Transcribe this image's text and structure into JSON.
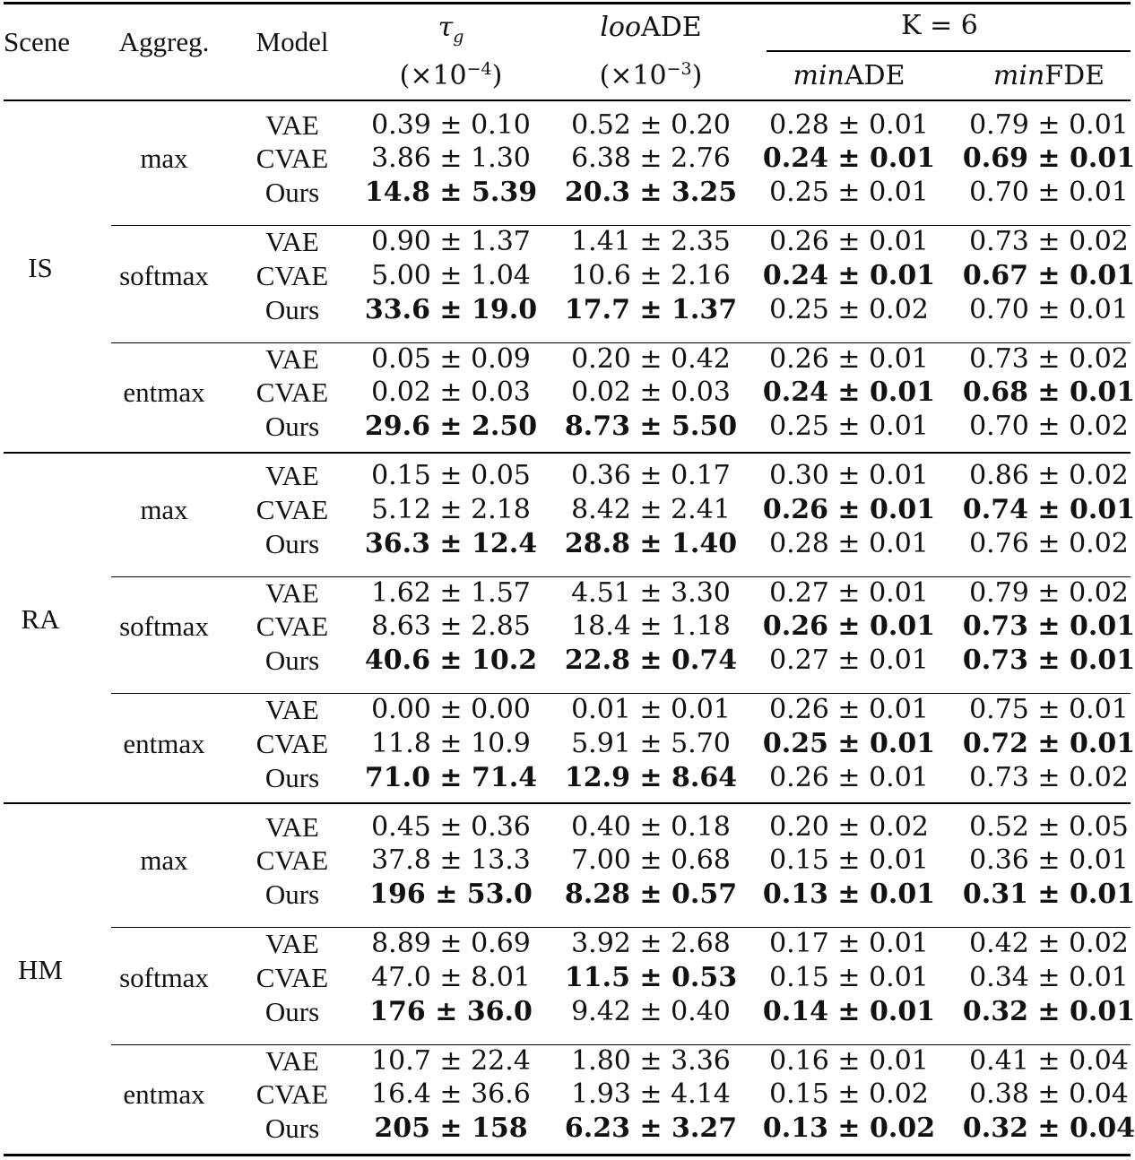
{
  "header": {
    "scene": "Scene",
    "aggreg": "Aggreg.",
    "model": "Model",
    "tau_symbol": "τ",
    "tau_sub": "g",
    "tau_unit_pre": "(×10",
    "tau_unit_exp": "−4",
    "tau_unit_post": ")",
    "loo_italic": "loo",
    "loo_rest": "ADE",
    "loo_unit_pre": "(×10",
    "loo_unit_exp": "−3",
    "loo_unit_post": ")",
    "k_group": "K = 6",
    "minade_italic": "min",
    "minade_rest": "ADE",
    "minfde_italic": "min",
    "minfde_rest": "FDE"
  },
  "scenes": [
    {
      "name": "IS",
      "groups": [
        {
          "aggreg": "max",
          "rows": [
            {
              "model": "VAE",
              "tau": "0.39 ± 0.10",
              "tau_bold": false,
              "loo": "0.52 ± 0.20",
              "loo_bold": false,
              "minade": "0.28 ± 0.01",
              "minade_bold": false,
              "minfde": "0.79 ± 0.01",
              "minfde_bold": false
            },
            {
              "model": "CVAE",
              "tau": "3.86 ± 1.30",
              "tau_bold": false,
              "loo": "6.38 ± 2.76",
              "loo_bold": false,
              "minade": "0.24 ± 0.01",
              "minade_bold": true,
              "minfde": "0.69 ± 0.01",
              "minfde_bold": true
            },
            {
              "model": "Ours",
              "tau": "14.8 ± 5.39",
              "tau_bold": true,
              "loo": "20.3 ± 3.25",
              "loo_bold": true,
              "minade": "0.25 ± 0.01",
              "minade_bold": false,
              "minfde": "0.70 ± 0.01",
              "minfde_bold": false
            }
          ]
        },
        {
          "aggreg": "softmax",
          "rows": [
            {
              "model": "VAE",
              "tau": "0.90 ± 1.37",
              "tau_bold": false,
              "loo": "1.41 ± 2.35",
              "loo_bold": false,
              "minade": "0.26 ± 0.01",
              "minade_bold": false,
              "minfde": "0.73 ± 0.02",
              "minfde_bold": false
            },
            {
              "model": "CVAE",
              "tau": "5.00 ± 1.04",
              "tau_bold": false,
              "loo": "10.6 ± 2.16",
              "loo_bold": false,
              "minade": "0.24 ± 0.01",
              "minade_bold": true,
              "minfde": "0.67 ± 0.01",
              "minfde_bold": true
            },
            {
              "model": "Ours",
              "tau": "33.6 ± 19.0",
              "tau_bold": true,
              "loo": "17.7 ± 1.37",
              "loo_bold": true,
              "minade": "0.25 ± 0.02",
              "minade_bold": false,
              "minfde": "0.70 ± 0.01",
              "minfde_bold": false
            }
          ]
        },
        {
          "aggreg": "entmax",
          "rows": [
            {
              "model": "VAE",
              "tau": "0.05 ± 0.09",
              "tau_bold": false,
              "loo": "0.20 ± 0.42",
              "loo_bold": false,
              "minade": "0.26 ± 0.01",
              "minade_bold": false,
              "minfde": "0.73 ± 0.02",
              "minfde_bold": false
            },
            {
              "model": "CVAE",
              "tau": "0.02 ± 0.03",
              "tau_bold": false,
              "loo": "0.02 ± 0.03",
              "loo_bold": false,
              "minade": "0.24 ± 0.01",
              "minade_bold": true,
              "minfde": "0.68 ± 0.01",
              "minfde_bold": true
            },
            {
              "model": "Ours",
              "tau": "29.6 ± 2.50",
              "tau_bold": true,
              "loo": "8.73 ± 5.50",
              "loo_bold": true,
              "minade": "0.25 ± 0.01",
              "minade_bold": false,
              "minfde": "0.70 ± 0.02",
              "minfde_bold": false
            }
          ]
        }
      ]
    },
    {
      "name": "RA",
      "groups": [
        {
          "aggreg": "max",
          "rows": [
            {
              "model": "VAE",
              "tau": "0.15 ± 0.05",
              "tau_bold": false,
              "loo": "0.36 ± 0.17",
              "loo_bold": false,
              "minade": "0.30 ± 0.01",
              "minade_bold": false,
              "minfde": "0.86 ± 0.02",
              "minfde_bold": false
            },
            {
              "model": "CVAE",
              "tau": "5.12 ± 2.18",
              "tau_bold": false,
              "loo": "8.42 ± 2.41",
              "loo_bold": false,
              "minade": "0.26 ± 0.01",
              "minade_bold": true,
              "minfde": "0.74 ± 0.01",
              "minfde_bold": true
            },
            {
              "model": "Ours",
              "tau": "36.3 ± 12.4",
              "tau_bold": true,
              "loo": "28.8 ± 1.40",
              "loo_bold": true,
              "minade": "0.28 ± 0.01",
              "minade_bold": false,
              "minfde": "0.76 ± 0.02",
              "minfde_bold": false
            }
          ]
        },
        {
          "aggreg": "softmax",
          "rows": [
            {
              "model": "VAE",
              "tau": "1.62 ± 1.57",
              "tau_bold": false,
              "loo": "4.51 ± 3.30",
              "loo_bold": false,
              "minade": "0.27 ± 0.01",
              "minade_bold": false,
              "minfde": "0.79 ± 0.02",
              "minfde_bold": false
            },
            {
              "model": "CVAE",
              "tau": "8.63 ± 2.85",
              "tau_bold": false,
              "loo": "18.4 ± 1.18",
              "loo_bold": false,
              "minade": "0.26 ± 0.01",
              "minade_bold": true,
              "minfde": "0.73 ± 0.01",
              "minfde_bold": true
            },
            {
              "model": "Ours",
              "tau": "40.6 ± 10.2",
              "tau_bold": true,
              "loo": "22.8 ± 0.74",
              "loo_bold": true,
              "minade": "0.27 ± 0.01",
              "minade_bold": false,
              "minfde": "0.73 ± 0.01",
              "minfde_bold": true
            }
          ]
        },
        {
          "aggreg": "entmax",
          "rows": [
            {
              "model": "VAE",
              "tau": "0.00 ± 0.00",
              "tau_bold": false,
              "loo": "0.01 ± 0.01",
              "loo_bold": false,
              "minade": "0.26 ± 0.01",
              "minade_bold": false,
              "minfde": "0.75 ± 0.01",
              "minfde_bold": false
            },
            {
              "model": "CVAE",
              "tau": "11.8 ± 10.9",
              "tau_bold": false,
              "loo": "5.91 ± 5.70",
              "loo_bold": false,
              "minade": "0.25 ± 0.01",
              "minade_bold": true,
              "minfde": "0.72 ± 0.01",
              "minfde_bold": true
            },
            {
              "model": "Ours",
              "tau": "71.0 ± 71.4",
              "tau_bold": true,
              "loo": "12.9 ± 8.64",
              "loo_bold": true,
              "minade": "0.26 ± 0.01",
              "minade_bold": false,
              "minfde": "0.73 ± 0.02",
              "minfde_bold": false
            }
          ]
        }
      ]
    },
    {
      "name": "HM",
      "groups": [
        {
          "aggreg": "max",
          "rows": [
            {
              "model": "VAE",
              "tau": "0.45 ± 0.36",
              "tau_bold": false,
              "loo": "0.40 ± 0.18",
              "loo_bold": false,
              "minade": "0.20 ± 0.02",
              "minade_bold": false,
              "minfde": "0.52 ± 0.05",
              "minfde_bold": false
            },
            {
              "model": "CVAE",
              "tau": "37.8 ± 13.3",
              "tau_bold": false,
              "loo": "7.00 ± 0.68",
              "loo_bold": false,
              "minade": "0.15 ± 0.01",
              "minade_bold": false,
              "minfde": "0.36 ± 0.01",
              "minfde_bold": false
            },
            {
              "model": "Ours",
              "tau": "196 ± 53.0",
              "tau_bold": true,
              "loo": "8.28 ± 0.57",
              "loo_bold": true,
              "minade": "0.13 ± 0.01",
              "minade_bold": true,
              "minfde": "0.31 ± 0.01",
              "minfde_bold": true
            }
          ]
        },
        {
          "aggreg": "softmax",
          "rows": [
            {
              "model": "VAE",
              "tau": "8.89 ± 0.69",
              "tau_bold": false,
              "loo": "3.92 ± 2.68",
              "loo_bold": false,
              "minade": "0.17 ± 0.01",
              "minade_bold": false,
              "minfde": "0.42 ± 0.02",
              "minfde_bold": false
            },
            {
              "model": "CVAE",
              "tau": "47.0 ± 8.01",
              "tau_bold": false,
              "loo": "11.5 ± 0.53",
              "loo_bold": true,
              "minade": "0.15 ± 0.01",
              "minade_bold": false,
              "minfde": "0.34 ± 0.01",
              "minfde_bold": false
            },
            {
              "model": "Ours",
              "tau": "176 ± 36.0",
              "tau_bold": true,
              "loo": "9.42 ± 0.40",
              "loo_bold": false,
              "minade": "0.14 ± 0.01",
              "minade_bold": true,
              "minfde": "0.32 ± 0.01",
              "minfde_bold": true
            }
          ]
        },
        {
          "aggreg": "entmax",
          "rows": [
            {
              "model": "VAE",
              "tau": "10.7 ± 22.4",
              "tau_bold": false,
              "loo": "1.80 ± 3.36",
              "loo_bold": false,
              "minade": "0.16 ± 0.01",
              "minade_bold": false,
              "minfde": "0.41 ± 0.04",
              "minfde_bold": false
            },
            {
              "model": "CVAE",
              "tau": "16.4 ± 36.6",
              "tau_bold": false,
              "loo": "1.93 ± 4.14",
              "loo_bold": false,
              "minade": "0.15 ± 0.02",
              "minade_bold": false,
              "minfde": "0.38 ± 0.04",
              "minfde_bold": false
            },
            {
              "model": "Ours",
              "tau": "205 ± 158",
              "tau_bold": true,
              "loo": "6.23 ± 3.27",
              "loo_bold": true,
              "minade": "0.13 ± 0.02",
              "minade_bold": true,
              "minfde": "0.32 ± 0.04",
              "minfde_bold": true
            }
          ]
        }
      ]
    }
  ]
}
